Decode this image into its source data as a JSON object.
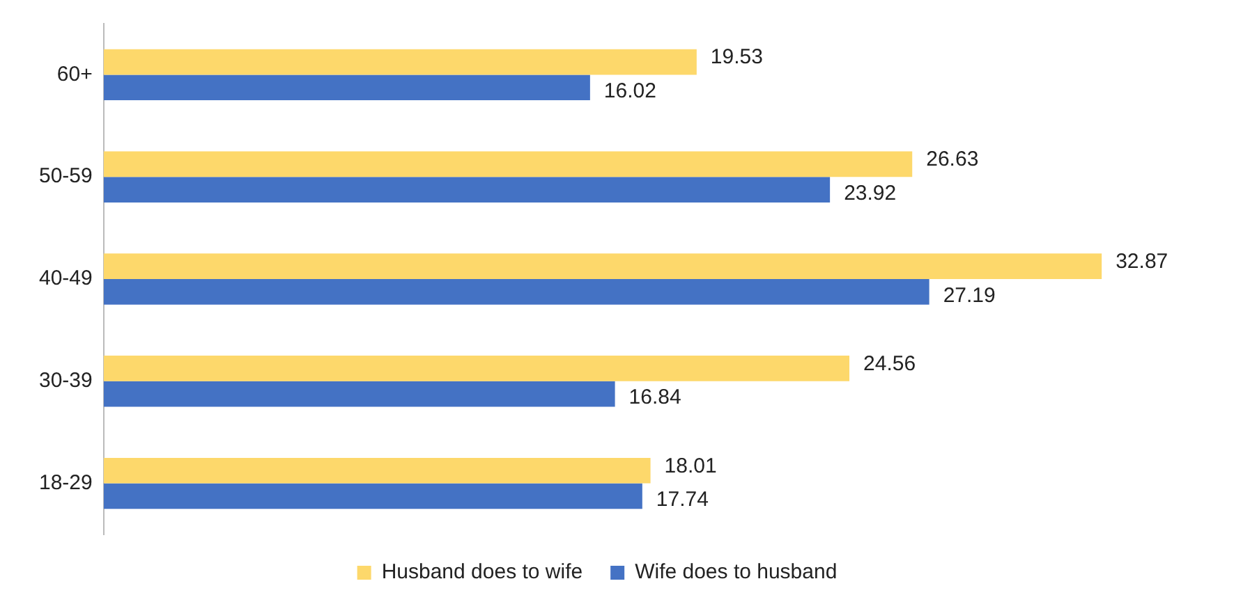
{
  "chart_data": {
    "type": "bar",
    "orientation": "horizontal",
    "categories": [
      "60+",
      "50-59",
      "40-49",
      "30-39",
      "18-29"
    ],
    "series": [
      {
        "name": "Husband does to wife",
        "color": "#fdd86b",
        "values": [
          19.53,
          26.63,
          32.87,
          24.56,
          18.01
        ]
      },
      {
        "name": "Wife does to husband",
        "color": "#4472c4",
        "values": [
          16.02,
          23.92,
          27.19,
          16.84,
          17.74
        ]
      }
    ],
    "data_labels": true,
    "legend": "bottom"
  }
}
